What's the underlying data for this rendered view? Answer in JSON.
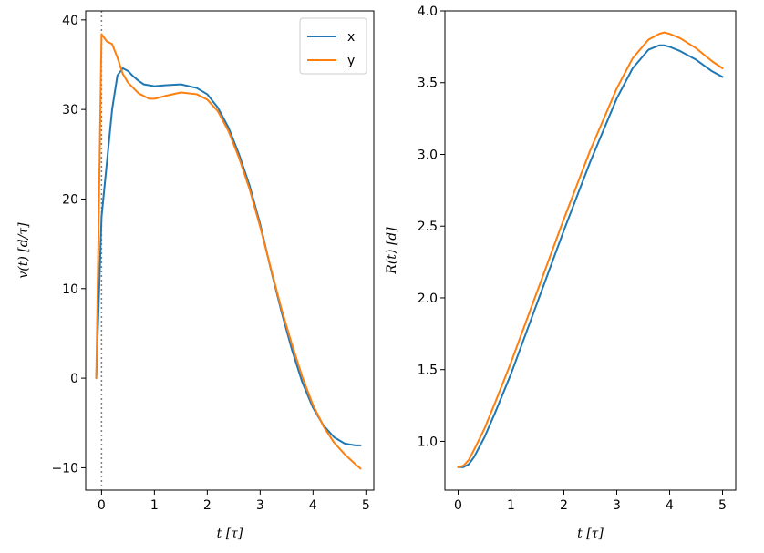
{
  "chart_data": [
    {
      "type": "line",
      "xlabel": "t [τ]",
      "ylabel": "v(t) [d/τ]",
      "xlim": [
        -0.3,
        5.15
      ],
      "ylim": [
        -12.5,
        41
      ],
      "xticks": [
        0,
        1,
        2,
        3,
        4,
        5
      ],
      "xtick_labels": [
        "0",
        "1",
        "2",
        "3",
        "4",
        "5"
      ],
      "yticks": [
        -10,
        0,
        10,
        20,
        30,
        40
      ],
      "ytick_labels": [
        "−10",
        "0",
        "10",
        "20",
        "30",
        "40"
      ],
      "vline": {
        "x": 0,
        "style": "dotted",
        "color": "#808080"
      },
      "legend": {
        "placement": "top-right"
      },
      "series": [
        {
          "name": "x",
          "color": "#1f77b4",
          "points": [
            [
              -0.1,
              0
            ],
            [
              0.0,
              18
            ],
            [
              0.1,
              24
            ],
            [
              0.2,
              30
            ],
            [
              0.3,
              33.8
            ],
            [
              0.4,
              34.6
            ],
            [
              0.5,
              34.3
            ],
            [
              0.6,
              33.7
            ],
            [
              0.7,
              33.2
            ],
            [
              0.8,
              32.8
            ],
            [
              1.0,
              32.6
            ],
            [
              1.2,
              32.7
            ],
            [
              1.5,
              32.8
            ],
            [
              1.8,
              32.4
            ],
            [
              2.0,
              31.7
            ],
            [
              2.2,
              30.2
            ],
            [
              2.4,
              28
            ],
            [
              2.6,
              25
            ],
            [
              2.8,
              21.5
            ],
            [
              3.0,
              17.2
            ],
            [
              3.2,
              12.2
            ],
            [
              3.4,
              7.5
            ],
            [
              3.6,
              3.2
            ],
            [
              3.8,
              -0.5
            ],
            [
              4.0,
              -3.3
            ],
            [
              4.2,
              -5.3
            ],
            [
              4.4,
              -6.6
            ],
            [
              4.6,
              -7.3
            ],
            [
              4.8,
              -7.5
            ],
            [
              4.9,
              -7.5
            ]
          ]
        },
        {
          "name": "y",
          "color": "#ff7f0e",
          "points": [
            [
              -0.1,
              0
            ],
            [
              0.0,
              38.4
            ],
            [
              0.05,
              38
            ],
            [
              0.1,
              37.6
            ],
            [
              0.2,
              37.3
            ],
            [
              0.3,
              35.8
            ],
            [
              0.4,
              34
            ],
            [
              0.5,
              33
            ],
            [
              0.7,
              31.8
            ],
            [
              0.9,
              31.2
            ],
            [
              1.0,
              31.2
            ],
            [
              1.2,
              31.5
            ],
            [
              1.5,
              31.9
            ],
            [
              1.8,
              31.7
            ],
            [
              2.0,
              31.1
            ],
            [
              2.2,
              29.8
            ],
            [
              2.4,
              27.6
            ],
            [
              2.6,
              24.6
            ],
            [
              2.8,
              21.1
            ],
            [
              3.0,
              16.9
            ],
            [
              3.2,
              12.3
            ],
            [
              3.4,
              7.8
            ],
            [
              3.6,
              3.8
            ],
            [
              3.8,
              0.1
            ],
            [
              4.0,
              -3
            ],
            [
              4.2,
              -5.4
            ],
            [
              4.4,
              -7.2
            ],
            [
              4.6,
              -8.5
            ],
            [
              4.8,
              -9.6
            ],
            [
              4.9,
              -10.1
            ]
          ]
        }
      ]
    },
    {
      "type": "line",
      "xlabel": "t [τ]",
      "ylabel": "R(t) [d]",
      "xlim": [
        -0.25,
        5.25
      ],
      "ylim": [
        0.66,
        4.0
      ],
      "xticks": [
        0,
        1,
        2,
        3,
        4,
        5
      ],
      "xtick_labels": [
        "0",
        "1",
        "2",
        "3",
        "4",
        "5"
      ],
      "yticks": [
        1.0,
        1.5,
        2.0,
        2.5,
        3.0,
        3.5,
        4.0
      ],
      "ytick_labels": [
        "1.0",
        "1.5",
        "2.0",
        "2.5",
        "3.0",
        "3.5",
        "4.0"
      ],
      "series": [
        {
          "color": "#1f77b4",
          "points": [
            [
              0,
              0.82
            ],
            [
              0.1,
              0.82
            ],
            [
              0.2,
              0.84
            ],
            [
              0.3,
              0.89
            ],
            [
              0.5,
              1.03
            ],
            [
              0.7,
              1.2
            ],
            [
              1.0,
              1.47
            ],
            [
              1.5,
              1.97
            ],
            [
              2.0,
              2.47
            ],
            [
              2.5,
              2.95
            ],
            [
              3.0,
              3.39
            ],
            [
              3.3,
              3.6
            ],
            [
              3.6,
              3.73
            ],
            [
              3.8,
              3.76
            ],
            [
              3.9,
              3.76
            ],
            [
              4.0,
              3.75
            ],
            [
              4.2,
              3.72
            ],
            [
              4.5,
              3.66
            ],
            [
              4.8,
              3.58
            ],
            [
              5.0,
              3.54
            ]
          ]
        },
        {
          "color": "#ff7f0e",
          "points": [
            [
              0,
              0.82
            ],
            [
              0.1,
              0.83
            ],
            [
              0.2,
              0.87
            ],
            [
              0.3,
              0.94
            ],
            [
              0.5,
              1.09
            ],
            [
              0.7,
              1.27
            ],
            [
              1.0,
              1.55
            ],
            [
              1.5,
              2.05
            ],
            [
              2.0,
              2.55
            ],
            [
              2.5,
              3.03
            ],
            [
              3.0,
              3.46
            ],
            [
              3.3,
              3.67
            ],
            [
              3.6,
              3.8
            ],
            [
              3.8,
              3.84
            ],
            [
              3.9,
              3.85
            ],
            [
              4.0,
              3.84
            ],
            [
              4.2,
              3.81
            ],
            [
              4.5,
              3.74
            ],
            [
              4.8,
              3.65
            ],
            [
              5.0,
              3.6
            ]
          ]
        }
      ]
    }
  ]
}
